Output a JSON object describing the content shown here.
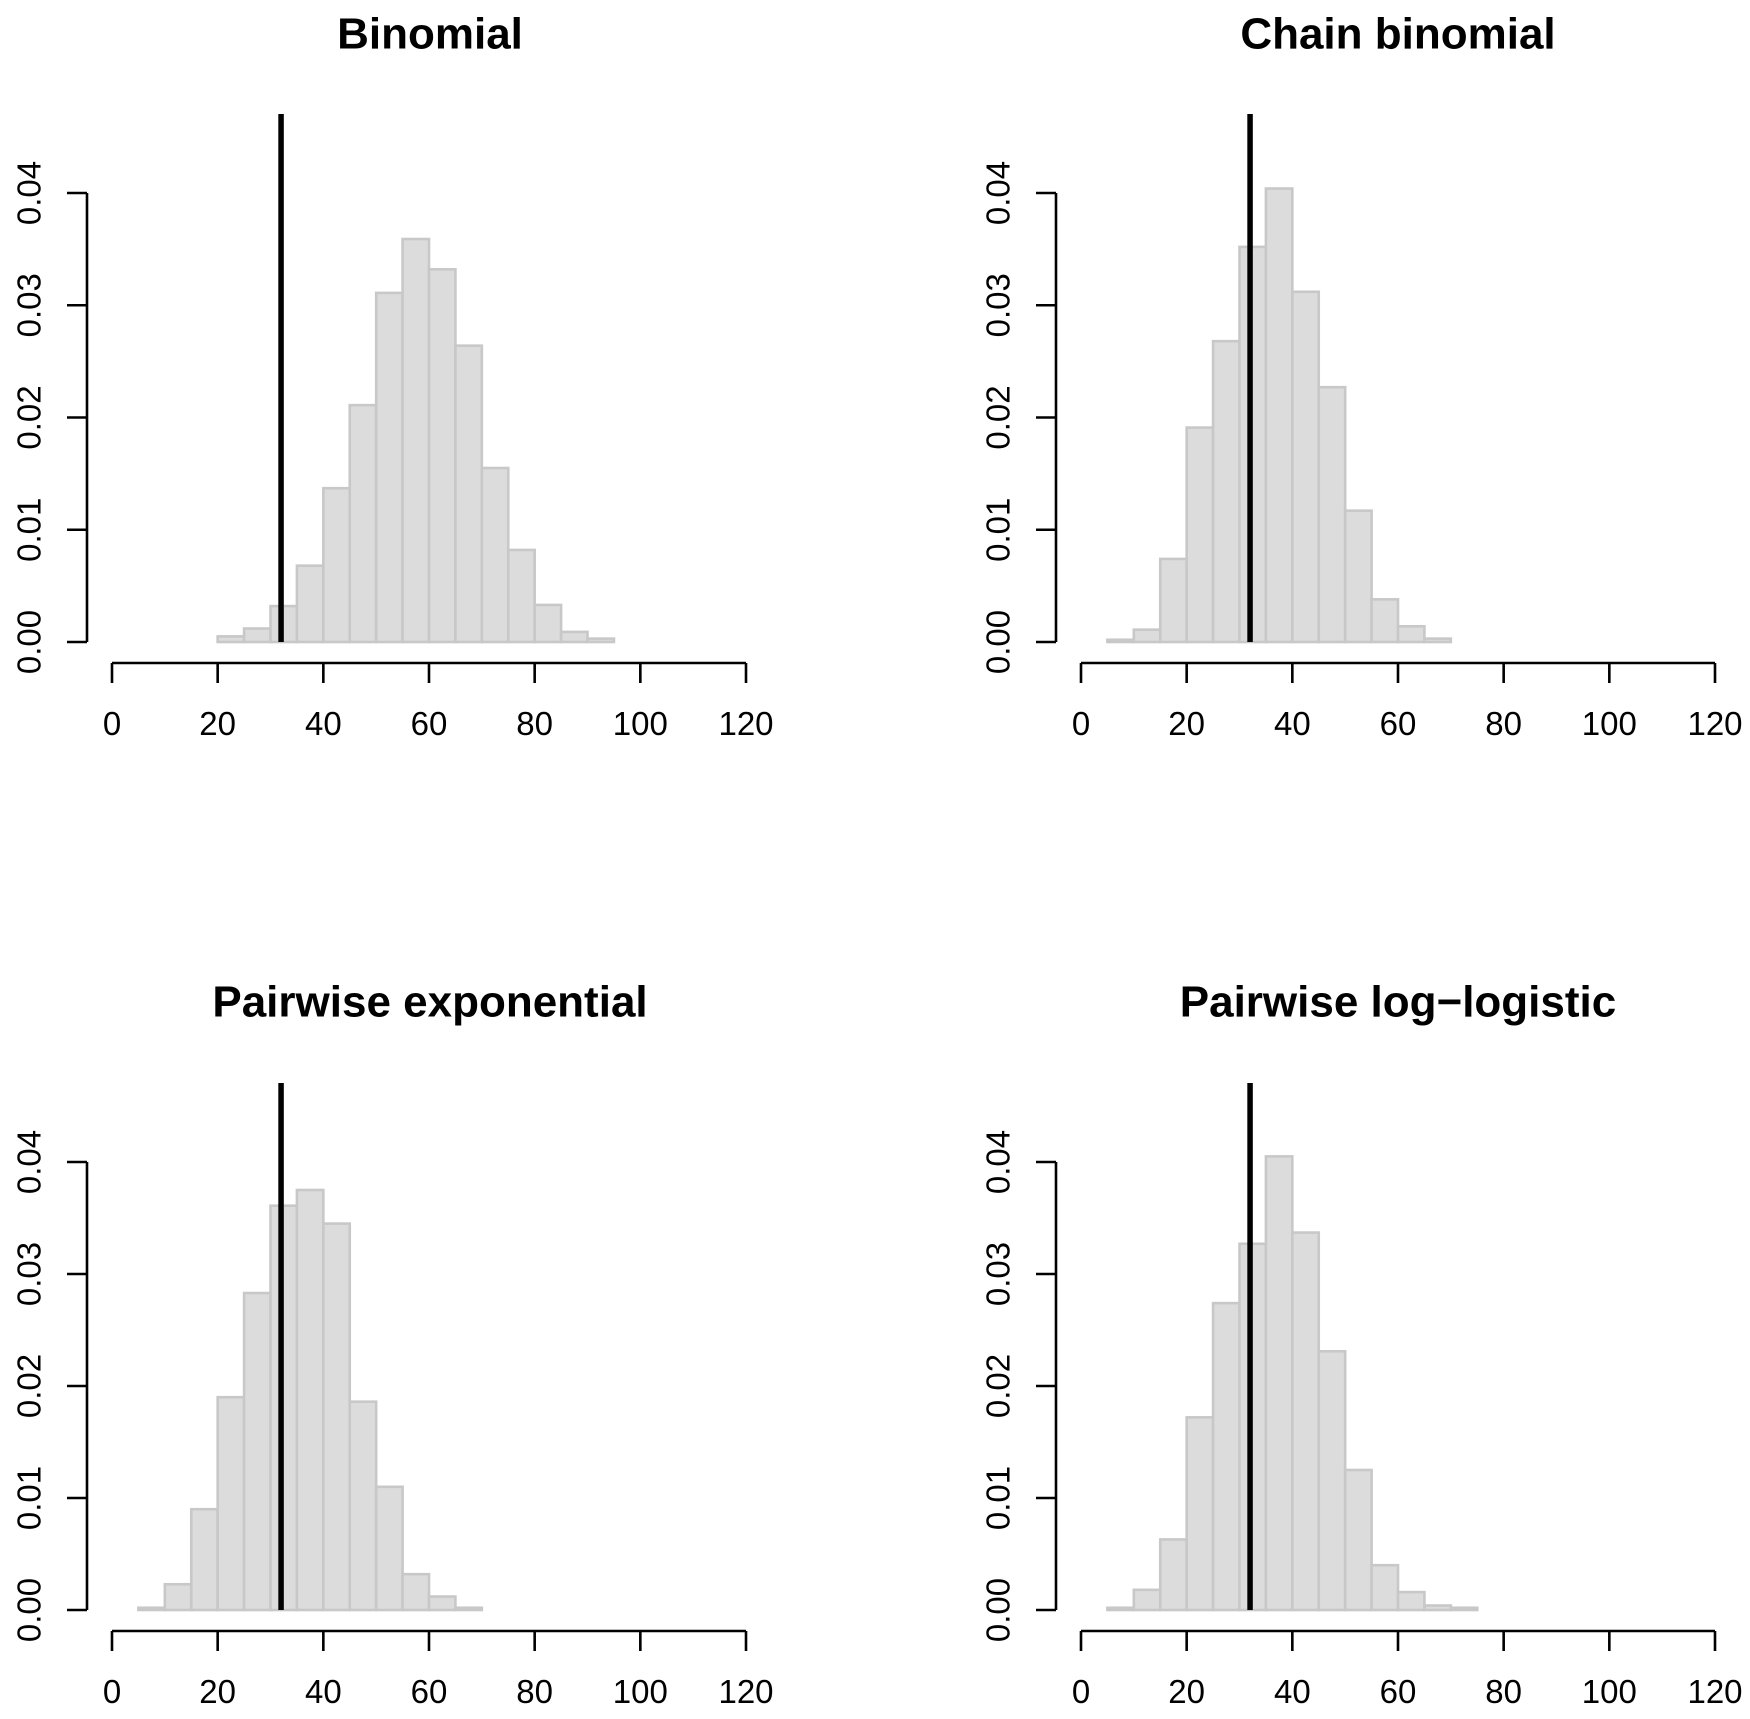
{
  "chart_data": [
    {
      "type": "bar",
      "subtype": "histogram",
      "title": "Binomial",
      "xlabel": "",
      "ylabel": "",
      "xlim": [
        0,
        120
      ],
      "ylim": [
        0,
        0.04
      ],
      "x_ticks": [
        "0",
        "20",
        "40",
        "60",
        "80",
        "100",
        "120"
      ],
      "y_ticks": [
        "0.00",
        "0.01",
        "0.02",
        "0.03",
        "0.04"
      ],
      "bin_width": 5,
      "bins": [
        {
          "start": 20,
          "end": 25,
          "density": 0.0005
        },
        {
          "start": 25,
          "end": 30,
          "density": 0.0012
        },
        {
          "start": 30,
          "end": 35,
          "density": 0.0032
        },
        {
          "start": 35,
          "end": 40,
          "density": 0.0068
        },
        {
          "start": 40,
          "end": 45,
          "density": 0.0137
        },
        {
          "start": 45,
          "end": 50,
          "density": 0.0211
        },
        {
          "start": 50,
          "end": 55,
          "density": 0.0311
        },
        {
          "start": 55,
          "end": 60,
          "density": 0.0359
        },
        {
          "start": 60,
          "end": 65,
          "density": 0.0332
        },
        {
          "start": 65,
          "end": 70,
          "density": 0.0264
        },
        {
          "start": 70,
          "end": 75,
          "density": 0.0155
        },
        {
          "start": 75,
          "end": 80,
          "density": 0.0082
        },
        {
          "start": 80,
          "end": 85,
          "density": 0.0033
        },
        {
          "start": 85,
          "end": 90,
          "density": 0.0009
        },
        {
          "start": 90,
          "end": 95,
          "density": 0.0003
        }
      ],
      "reference_line_x": 32,
      "colors": {
        "bar_fill": "#dcdcdc",
        "bar_border": "#c8c8c8",
        "reference_line": "#000000"
      }
    },
    {
      "type": "bar",
      "subtype": "histogram",
      "title": "Chain binomial",
      "xlabel": "",
      "ylabel": "",
      "xlim": [
        0,
        120
      ],
      "ylim": [
        0,
        0.04
      ],
      "x_ticks": [
        "0",
        "20",
        "40",
        "60",
        "80",
        "100",
        "120"
      ],
      "y_ticks": [
        "0.00",
        "0.01",
        "0.02",
        "0.03",
        "0.04"
      ],
      "bin_width": 5,
      "bins": [
        {
          "start": 5,
          "end": 10,
          "density": 0.0002
        },
        {
          "start": 10,
          "end": 15,
          "density": 0.0011
        },
        {
          "start": 15,
          "end": 20,
          "density": 0.0074
        },
        {
          "start": 20,
          "end": 25,
          "density": 0.0191
        },
        {
          "start": 25,
          "end": 30,
          "density": 0.0268
        },
        {
          "start": 30,
          "end": 35,
          "density": 0.0352
        },
        {
          "start": 35,
          "end": 40,
          "density": 0.0404
        },
        {
          "start": 40,
          "end": 45,
          "density": 0.0312
        },
        {
          "start": 45,
          "end": 50,
          "density": 0.0227
        },
        {
          "start": 50,
          "end": 55,
          "density": 0.0117
        },
        {
          "start": 55,
          "end": 60,
          "density": 0.0038
        },
        {
          "start": 60,
          "end": 65,
          "density": 0.0014
        },
        {
          "start": 65,
          "end": 70,
          "density": 0.0003
        }
      ],
      "reference_line_x": 32,
      "colors": {
        "bar_fill": "#dcdcdc",
        "bar_border": "#c8c8c8",
        "reference_line": "#000000"
      }
    },
    {
      "type": "bar",
      "subtype": "histogram",
      "title": "Pairwise exponential",
      "xlabel": "",
      "ylabel": "",
      "xlim": [
        0,
        120
      ],
      "ylim": [
        0,
        0.04
      ],
      "x_ticks": [
        "0",
        "20",
        "40",
        "60",
        "80",
        "100",
        "120"
      ],
      "y_ticks": [
        "0.00",
        "0.01",
        "0.02",
        "0.03",
        "0.04"
      ],
      "bin_width": 5,
      "bins": [
        {
          "start": 5,
          "end": 10,
          "density": 0.0002
        },
        {
          "start": 10,
          "end": 15,
          "density": 0.0023
        },
        {
          "start": 15,
          "end": 20,
          "density": 0.009
        },
        {
          "start": 20,
          "end": 25,
          "density": 0.019
        },
        {
          "start": 25,
          "end": 30,
          "density": 0.0283
        },
        {
          "start": 30,
          "end": 35,
          "density": 0.0361
        },
        {
          "start": 35,
          "end": 40,
          "density": 0.0375
        },
        {
          "start": 40,
          "end": 45,
          "density": 0.0345
        },
        {
          "start": 45,
          "end": 50,
          "density": 0.0186
        },
        {
          "start": 50,
          "end": 55,
          "density": 0.011
        },
        {
          "start": 55,
          "end": 60,
          "density": 0.0032
        },
        {
          "start": 60,
          "end": 65,
          "density": 0.0012
        },
        {
          "start": 65,
          "end": 70,
          "density": 0.0002
        }
      ],
      "reference_line_x": 32,
      "colors": {
        "bar_fill": "#dcdcdc",
        "bar_border": "#c8c8c8",
        "reference_line": "#000000"
      }
    },
    {
      "type": "bar",
      "subtype": "histogram",
      "title": "Pairwise log−logistic",
      "xlabel": "",
      "ylabel": "",
      "xlim": [
        0,
        120
      ],
      "ylim": [
        0,
        0.04
      ],
      "x_ticks": [
        "0",
        "20",
        "40",
        "60",
        "80",
        "100",
        "120"
      ],
      "y_ticks": [
        "0.00",
        "0.01",
        "0.02",
        "0.03",
        "0.04"
      ],
      "bin_width": 5,
      "bins": [
        {
          "start": 5,
          "end": 10,
          "density": 0.0002
        },
        {
          "start": 10,
          "end": 15,
          "density": 0.0018
        },
        {
          "start": 15,
          "end": 20,
          "density": 0.0063
        },
        {
          "start": 20,
          "end": 25,
          "density": 0.0172
        },
        {
          "start": 25,
          "end": 30,
          "density": 0.0274
        },
        {
          "start": 30,
          "end": 35,
          "density": 0.0327
        },
        {
          "start": 35,
          "end": 40,
          "density": 0.0405
        },
        {
          "start": 40,
          "end": 45,
          "density": 0.0337
        },
        {
          "start": 45,
          "end": 50,
          "density": 0.0231
        },
        {
          "start": 50,
          "end": 55,
          "density": 0.0125
        },
        {
          "start": 55,
          "end": 60,
          "density": 0.004
        },
        {
          "start": 60,
          "end": 65,
          "density": 0.0016
        },
        {
          "start": 65,
          "end": 70,
          "density": 0.0004
        },
        {
          "start": 70,
          "end": 75,
          "density": 0.0002
        }
      ],
      "reference_line_x": 32,
      "colors": {
        "bar_fill": "#dcdcdc",
        "bar_border": "#c8c8c8",
        "reference_line": "#000000"
      }
    }
  ]
}
